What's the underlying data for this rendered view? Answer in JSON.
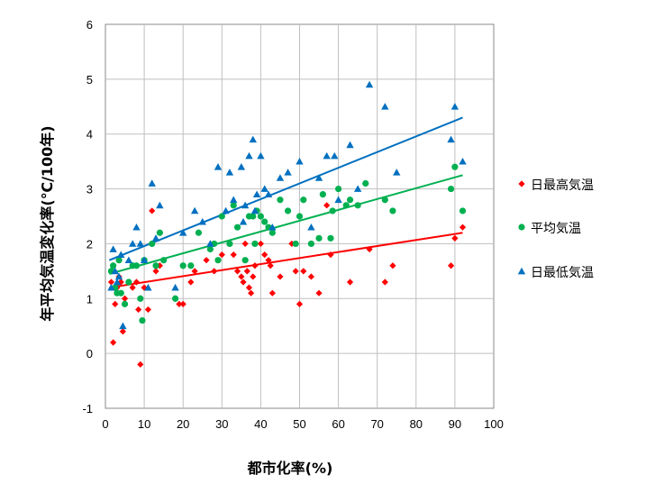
{
  "chart_data": {
    "type": "scatter",
    "xlabel": "都市化率(%)",
    "ylabel": "年平均気温変化率(℃/100年)",
    "xlim": [
      0,
      100
    ],
    "ylim": [
      -1,
      6
    ],
    "xticks": [
      0,
      10,
      20,
      30,
      40,
      50,
      60,
      70,
      80,
      90,
      100
    ],
    "yticks": [
      -1,
      0,
      1,
      2,
      3,
      4,
      5,
      6
    ],
    "grid": true,
    "legend_position": "right",
    "series": [
      {
        "name": "日最高気温",
        "marker": "diamond",
        "color": "#ff0000",
        "trend_color": "#ff0000",
        "trend": [
          [
            1,
            1.2
          ],
          [
            92,
            2.2
          ]
        ],
        "points": [
          [
            1.5,
            1.3
          ],
          [
            2,
            0.2
          ],
          [
            2.5,
            0.9
          ],
          [
            3,
            1.2
          ],
          [
            3.5,
            1.4
          ],
          [
            4,
            1.3
          ],
          [
            4.5,
            0.4
          ],
          [
            5,
            1.0
          ],
          [
            7,
            1.2
          ],
          [
            8,
            1.3
          ],
          [
            8.5,
            0.8
          ],
          [
            9,
            -0.2
          ],
          [
            10,
            1.2
          ],
          [
            11,
            0.8
          ],
          [
            12,
            2.6
          ],
          [
            13,
            1.5
          ],
          [
            14,
            1.6
          ],
          [
            18,
            1.0
          ],
          [
            19,
            0.9
          ],
          [
            20,
            0.9
          ],
          [
            22,
            1.3
          ],
          [
            23,
            1.5
          ],
          [
            26,
            1.7
          ],
          [
            28,
            1.5
          ],
          [
            30,
            1.8
          ],
          [
            32,
            2.0
          ],
          [
            33,
            1.8
          ],
          [
            34,
            1.5
          ],
          [
            35,
            1.4
          ],
          [
            35.5,
            1.3
          ],
          [
            36,
            2.0
          ],
          [
            36.5,
            1.5
          ],
          [
            37,
            1.2
          ],
          [
            37.5,
            1.1
          ],
          [
            38,
            1.4
          ],
          [
            38.5,
            1.6
          ],
          [
            40,
            2.0
          ],
          [
            41,
            1.8
          ],
          [
            42,
            1.7
          ],
          [
            42.5,
            1.6
          ],
          [
            43,
            1.1
          ],
          [
            45,
            1.4
          ],
          [
            48,
            2.0
          ],
          [
            49,
            1.5
          ],
          [
            50,
            0.9
          ],
          [
            51,
            1.5
          ],
          [
            53,
            1.4
          ],
          [
            55,
            1.1
          ],
          [
            57,
            2.7
          ],
          [
            58,
            1.8
          ],
          [
            63,
            1.3
          ],
          [
            68,
            1.9
          ],
          [
            72,
            1.3
          ],
          [
            74,
            1.6
          ],
          [
            89,
            1.6
          ],
          [
            90,
            2.1
          ],
          [
            92,
            2.3
          ]
        ]
      },
      {
        "name": "平均気温",
        "marker": "circle",
        "color": "#00b050",
        "trend_color": "#00b050",
        "trend": [
          [
            1,
            1.45
          ],
          [
            92,
            3.25
          ]
        ],
        "points": [
          [
            1.5,
            1.5
          ],
          [
            2,
            1.6
          ],
          [
            2.5,
            1.2
          ],
          [
            3,
            1.1
          ],
          [
            3.5,
            1.7
          ],
          [
            4,
            1.1
          ],
          [
            5,
            0.9
          ],
          [
            6,
            1.3
          ],
          [
            7,
            1.6
          ],
          [
            8,
            1.6
          ],
          [
            9,
            1.0
          ],
          [
            9.5,
            0.6
          ],
          [
            10,
            1.7
          ],
          [
            12,
            2.0
          ],
          [
            13,
            1.6
          ],
          [
            14,
            2.2
          ],
          [
            15,
            1.7
          ],
          [
            18,
            1.0
          ],
          [
            20,
            1.6
          ],
          [
            22,
            1.6
          ],
          [
            24,
            2.2
          ],
          [
            27,
            1.9
          ],
          [
            28,
            2.0
          ],
          [
            29,
            1.7
          ],
          [
            30,
            2.5
          ],
          [
            32,
            2.0
          ],
          [
            33,
            2.7
          ],
          [
            34,
            2.3
          ],
          [
            36,
            1.7
          ],
          [
            37,
            2.5
          ],
          [
            38,
            2.5
          ],
          [
            38.5,
            2.0
          ],
          [
            39,
            2.6
          ],
          [
            40,
            2.5
          ],
          [
            41,
            2.4
          ],
          [
            42,
            2.3
          ],
          [
            43,
            2.2
          ],
          [
            45,
            2.8
          ],
          [
            47,
            2.6
          ],
          [
            49,
            2.0
          ],
          [
            50,
            2.5
          ],
          [
            51,
            2.8
          ],
          [
            53,
            2.0
          ],
          [
            55,
            2.1
          ],
          [
            56,
            2.9
          ],
          [
            58,
            2.1
          ],
          [
            58.5,
            2.6
          ],
          [
            60,
            3.0
          ],
          [
            62,
            2.7
          ],
          [
            63,
            2.8
          ],
          [
            65,
            2.7
          ],
          [
            67,
            3.1
          ],
          [
            72,
            2.8
          ],
          [
            74,
            2.6
          ],
          [
            89,
            3.0
          ],
          [
            90,
            3.4
          ],
          [
            92,
            2.6
          ]
        ]
      },
      {
        "name": "日最低気温",
        "marker": "triangle",
        "color": "#0070c0",
        "trend_color": "#0070c0",
        "trend": [
          [
            1,
            1.7
          ],
          [
            92,
            4.3
          ]
        ],
        "points": [
          [
            1.5,
            1.2
          ],
          [
            2,
            1.9
          ],
          [
            2.5,
            1.5
          ],
          [
            3,
            1.3
          ],
          [
            3.5,
            1.4
          ],
          [
            4,
            1.8
          ],
          [
            4.5,
            0.5
          ],
          [
            6,
            1.7
          ],
          [
            7,
            2.0
          ],
          [
            8,
            2.3
          ],
          [
            9,
            2.0
          ],
          [
            10,
            1.7
          ],
          [
            11,
            1.2
          ],
          [
            12,
            3.1
          ],
          [
            13,
            2.1
          ],
          [
            14,
            2.7
          ],
          [
            18,
            1.2
          ],
          [
            20,
            2.2
          ],
          [
            23,
            2.6
          ],
          [
            25,
            2.4
          ],
          [
            27,
            2.0
          ],
          [
            29,
            3.4
          ],
          [
            31,
            2.6
          ],
          [
            32,
            3.3
          ],
          [
            33,
            2.8
          ],
          [
            35,
            3.4
          ],
          [
            35.5,
            2.4
          ],
          [
            36,
            2.7
          ],
          [
            37,
            3.6
          ],
          [
            38,
            3.9
          ],
          [
            38.5,
            2.6
          ],
          [
            39,
            2.9
          ],
          [
            40,
            3.6
          ],
          [
            41,
            3.0
          ],
          [
            42,
            2.9
          ],
          [
            43,
            2.3
          ],
          [
            45,
            3.2
          ],
          [
            47,
            3.3
          ],
          [
            50,
            3.5
          ],
          [
            53,
            2.3
          ],
          [
            55,
            3.2
          ],
          [
            57,
            3.6
          ],
          [
            59,
            3.6
          ],
          [
            60,
            2.8
          ],
          [
            63,
            3.8
          ],
          [
            65,
            3.0
          ],
          [
            68,
            4.9
          ],
          [
            72,
            4.5
          ],
          [
            75,
            3.3
          ],
          [
            89,
            3.9
          ],
          [
            90,
            4.5
          ],
          [
            92,
            3.5
          ]
        ]
      }
    ]
  }
}
